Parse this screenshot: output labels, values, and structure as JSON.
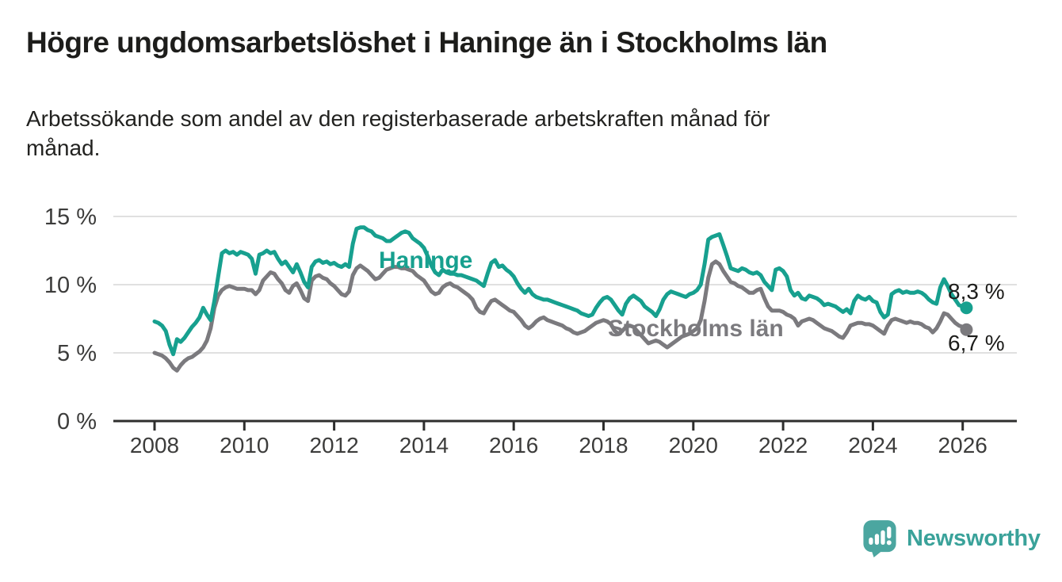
{
  "header": {
    "title": "Högre ungdomsarbetslöshet i Haninge än i Stockholms län",
    "subtitle_lines": [
      "Arbetssökande som andel av den registerbaserade arbetskraften månad för",
      "månad."
    ]
  },
  "chart_data": {
    "type": "line",
    "title": "Högre ungdomsarbetslöshet i Haninge än i Stockholms län",
    "subtitle": "Arbetssökande som andel av den registerbaserade arbetskraften månad för månad.",
    "unit": "%",
    "x_label": "",
    "y_label": "",
    "x_start_year": 2008,
    "x_start_month": 1,
    "frequency": "monthly",
    "ylim": [
      0,
      15.5
    ],
    "grid": true,
    "legend_position": "inline-labels",
    "y_ticks": [
      {
        "value": 0,
        "label": "0 %"
      },
      {
        "value": 5,
        "label": "5 %"
      },
      {
        "value": 10,
        "label": "10 %"
      },
      {
        "value": 15,
        "label": "15 %"
      }
    ],
    "x_ticks": [
      {
        "value": 2008,
        "label": "2008"
      },
      {
        "value": 2010,
        "label": "2010"
      },
      {
        "value": 2012,
        "label": "2012"
      },
      {
        "value": 2014,
        "label": "2014"
      },
      {
        "value": 2016,
        "label": "2016"
      },
      {
        "value": 2018,
        "label": "2018"
      },
      {
        "value": 2020,
        "label": "2020"
      },
      {
        "value": 2022,
        "label": "2022"
      },
      {
        "value": 2024,
        "label": "2024"
      },
      {
        "value": 2026,
        "label": "2026"
      }
    ],
    "series": [
      {
        "name": "Haninge",
        "color": "#17a08f",
        "end_label": "8,3 %",
        "last_value": 8.3,
        "values": [
          7.3,
          7.2,
          7.0,
          6.6,
          5.6,
          4.9,
          6.0,
          5.8,
          6.1,
          6.5,
          6.9,
          7.2,
          7.6,
          8.3,
          7.8,
          7.4,
          8.8,
          10.6,
          12.3,
          12.5,
          12.3,
          12.4,
          12.2,
          12.4,
          12.3,
          12.2,
          11.9,
          10.8,
          12.2,
          12.3,
          12.5,
          12.3,
          12.4,
          11.9,
          11.5,
          11.7,
          11.3,
          10.9,
          11.5,
          10.9,
          10.2,
          9.8,
          11.3,
          11.7,
          11.8,
          11.6,
          11.7,
          11.5,
          11.6,
          11.4,
          11.3,
          11.5,
          11.3,
          13.0,
          14.1,
          14.2,
          14.2,
          14.0,
          13.9,
          13.6,
          13.5,
          13.4,
          13.2,
          13.2,
          13.4,
          13.6,
          13.8,
          13.9,
          13.8,
          13.4,
          13.2,
          13.0,
          12.7,
          12.1,
          11.4,
          10.9,
          10.7,
          11.1,
          10.9,
          10.8,
          10.8,
          10.7,
          10.7,
          10.6,
          10.5,
          10.4,
          10.3,
          10.1,
          9.9,
          10.8,
          11.6,
          11.8,
          11.3,
          11.4,
          11.1,
          10.9,
          10.6,
          10.1,
          9.7,
          9.4,
          9.7,
          9.3,
          9.1,
          9.0,
          8.9,
          8.9,
          8.8,
          8.7,
          8.6,
          8.5,
          8.4,
          8.3,
          8.2,
          8.1,
          7.9,
          7.8,
          7.7,
          7.8,
          8.3,
          8.7,
          9.0,
          9.1,
          8.9,
          8.5,
          8.1,
          7.8,
          8.6,
          9.0,
          9.2,
          9.0,
          8.8,
          8.4,
          8.2,
          8.0,
          7.7,
          8.2,
          8.9,
          9.3,
          9.5,
          9.4,
          9.3,
          9.2,
          9.1,
          9.3,
          9.4,
          9.6,
          10.0,
          11.5,
          13.3,
          13.5,
          13.6,
          13.7,
          12.9,
          12.1,
          11.2,
          11.1,
          11.0,
          11.2,
          11.1,
          10.9,
          10.8,
          10.9,
          10.7,
          10.2,
          9.9,
          9.6,
          11.1,
          11.2,
          11.0,
          10.6,
          9.6,
          9.2,
          9.4,
          9.0,
          8.9,
          9.2,
          9.1,
          9.0,
          8.8,
          8.5,
          8.6,
          8.5,
          8.4,
          8.2,
          8.0,
          8.2,
          7.9,
          8.8,
          9.2,
          9.0,
          8.9,
          9.1,
          8.8,
          8.7,
          8.0,
          7.6,
          7.8,
          9.3,
          9.5,
          9.6,
          9.4,
          9.5,
          9.4,
          9.4,
          9.5,
          9.4,
          9.2,
          8.9,
          8.7,
          8.6,
          9.8,
          10.4,
          9.9,
          9.3,
          8.9,
          8.5,
          8.4,
          8.3
        ]
      },
      {
        "name": "Stockholms län",
        "color": "#7b7a7e",
        "end_label": "6,7 %",
        "last_value": 6.7,
        "values": [
          5.0,
          4.9,
          4.8,
          4.6,
          4.3,
          3.9,
          3.7,
          4.1,
          4.4,
          4.6,
          4.7,
          4.9,
          5.1,
          5.4,
          5.9,
          6.8,
          8.3,
          9.2,
          9.6,
          9.8,
          9.9,
          9.8,
          9.7,
          9.7,
          9.7,
          9.6,
          9.6,
          9.3,
          9.6,
          10.3,
          10.6,
          10.9,
          10.8,
          10.4,
          10.1,
          9.6,
          9.4,
          9.9,
          10.1,
          9.6,
          9.0,
          8.8,
          10.3,
          10.6,
          10.7,
          10.5,
          10.4,
          10.1,
          9.9,
          9.6,
          9.3,
          9.2,
          9.5,
          10.7,
          11.2,
          11.4,
          11.2,
          11.0,
          10.7,
          10.4,
          10.5,
          10.8,
          11.1,
          11.2,
          11.3,
          11.3,
          11.2,
          11.2,
          11.1,
          11.0,
          10.7,
          10.5,
          10.3,
          9.9,
          9.5,
          9.3,
          9.4,
          9.8,
          10.0,
          10.1,
          9.9,
          9.8,
          9.6,
          9.4,
          9.2,
          8.9,
          8.3,
          8.0,
          7.9,
          8.4,
          8.8,
          8.9,
          8.7,
          8.5,
          8.3,
          8.1,
          8.0,
          7.7,
          7.4,
          7.0,
          6.8,
          7.0,
          7.3,
          7.5,
          7.6,
          7.4,
          7.3,
          7.2,
          7.1,
          7.0,
          6.8,
          6.7,
          6.5,
          6.4,
          6.5,
          6.6,
          6.8,
          7.0,
          7.2,
          7.3,
          7.4,
          7.3,
          7.1,
          6.6,
          6.4,
          6.6,
          6.9,
          7.0,
          6.9,
          6.6,
          6.3,
          6.0,
          5.7,
          5.8,
          5.9,
          5.8,
          5.6,
          5.4,
          5.6,
          5.8,
          6.0,
          6.2,
          6.3,
          6.4,
          6.6,
          6.8,
          7.4,
          8.8,
          10.5,
          11.5,
          11.7,
          11.5,
          11.0,
          10.6,
          10.2,
          10.1,
          9.9,
          9.8,
          9.6,
          9.4,
          9.4,
          9.6,
          9.7,
          9.0,
          8.4,
          8.1,
          8.1,
          8.1,
          8.0,
          7.8,
          7.7,
          7.5,
          7.0,
          7.3,
          7.4,
          7.5,
          7.4,
          7.2,
          7.0,
          6.8,
          6.7,
          6.6,
          6.4,
          6.2,
          6.1,
          6.5,
          7.0,
          7.1,
          7.2,
          7.2,
          7.1,
          7.1,
          7.0,
          6.8,
          6.6,
          6.4,
          7.0,
          7.4,
          7.5,
          7.4,
          7.3,
          7.2,
          7.3,
          7.2,
          7.2,
          7.1,
          6.9,
          6.8,
          6.5,
          6.8,
          7.3,
          7.9,
          7.8,
          7.5,
          7.2,
          7.0,
          6.9,
          6.7
        ]
      }
    ]
  },
  "footer": {
    "brand": "Newsworthy"
  },
  "colors": {
    "haninge": "#17a08f",
    "stockholm": "#7b7a7e",
    "axis_text": "#3c3c3b",
    "axis_line": "#2e2e2d",
    "grid_line": "#e0e0e0",
    "value_label": "#1d1d1b",
    "logo": "#4ba6a0",
    "logo_text": "#3aa29a"
  }
}
